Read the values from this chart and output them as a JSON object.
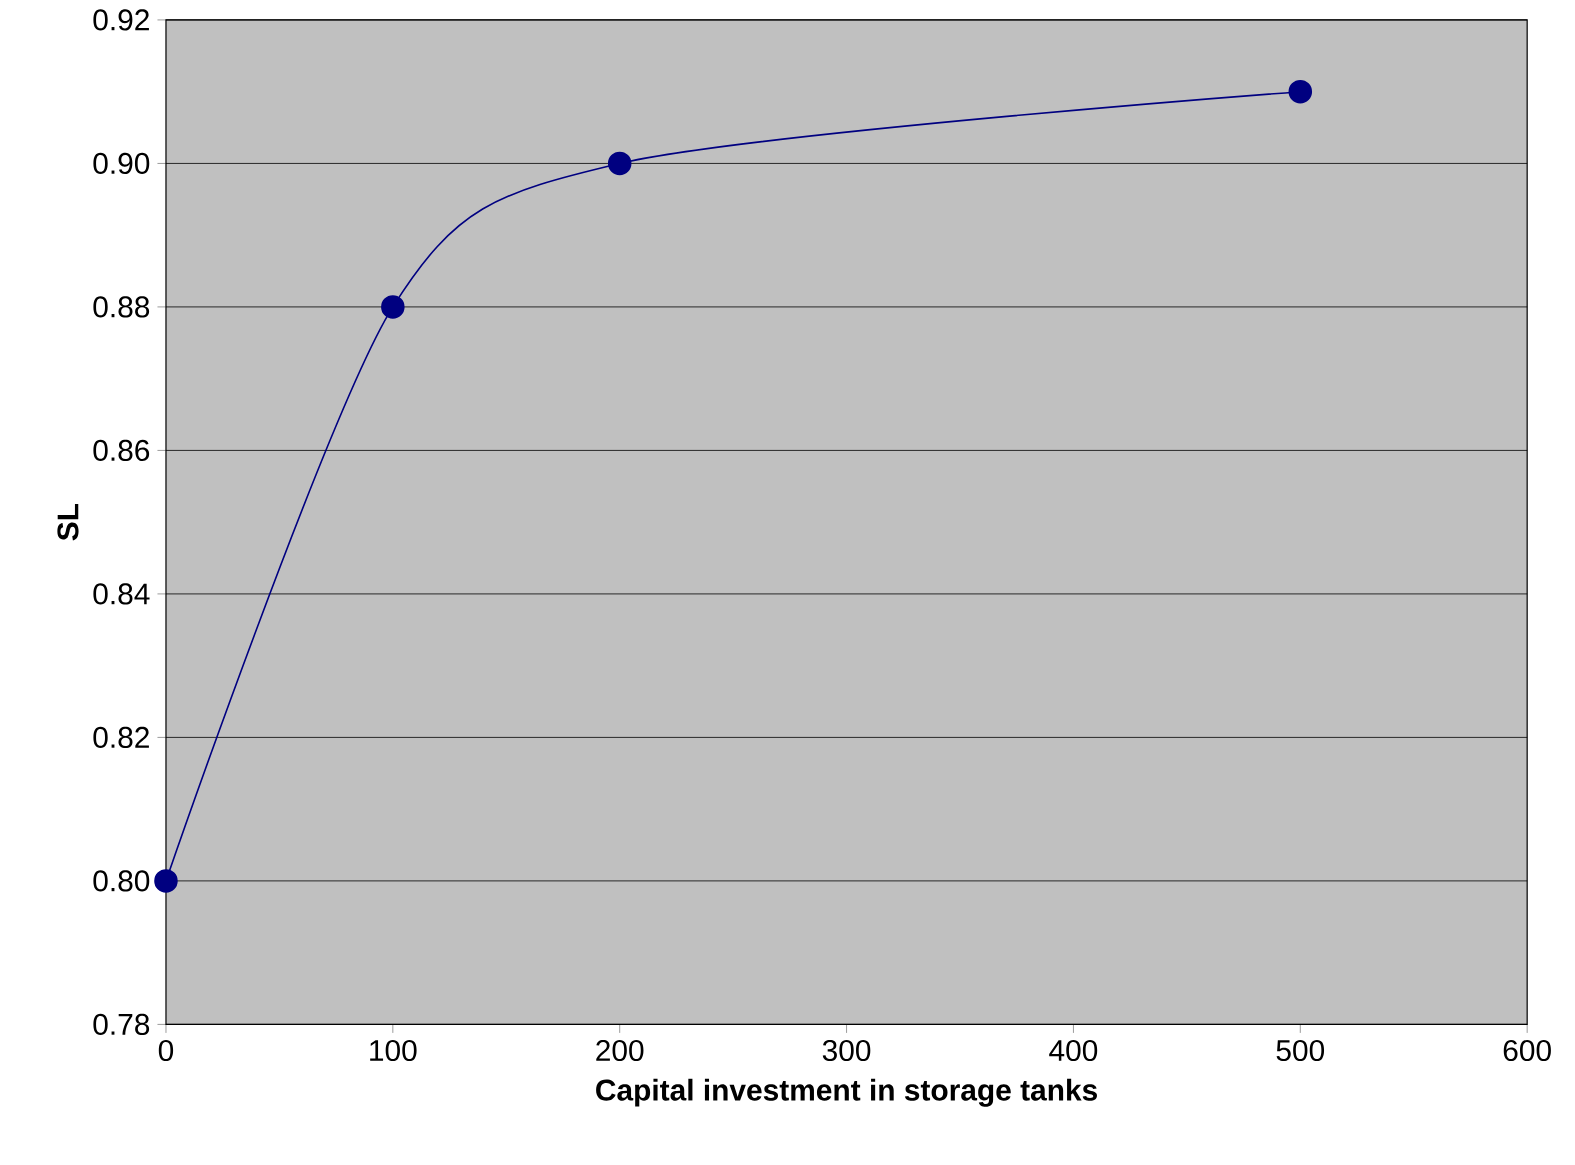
{
  "chart_data": {
    "type": "line",
    "xlabel": "Capital investment in storage tanks",
    "ylabel": "SL",
    "x": [
      0,
      100,
      200,
      500
    ],
    "series": [
      {
        "color": "#000080",
        "values": [
          0.8,
          0.88,
          0.9,
          0.91
        ]
      }
    ],
    "xlim": [
      0,
      600
    ],
    "xticks": [
      0,
      100,
      200,
      300,
      400,
      500,
      600
    ],
    "ylim": [
      0.78,
      0.92
    ],
    "yticks": [
      {
        "value": 0.78,
        "label": "0.78"
      },
      {
        "value": 0.8,
        "label": "0.80"
      },
      {
        "value": 0.82,
        "label": "0.82"
      },
      {
        "value": 0.84,
        "label": "0.84"
      },
      {
        "value": 0.86,
        "label": "0.86"
      },
      {
        "value": 0.88,
        "label": "0.88"
      },
      {
        "value": 0.9,
        "label": "0.90"
      },
      {
        "value": 0.92,
        "label": "0.92"
      }
    ],
    "grid": "y",
    "marker": "circle",
    "line_style": "solid"
  }
}
